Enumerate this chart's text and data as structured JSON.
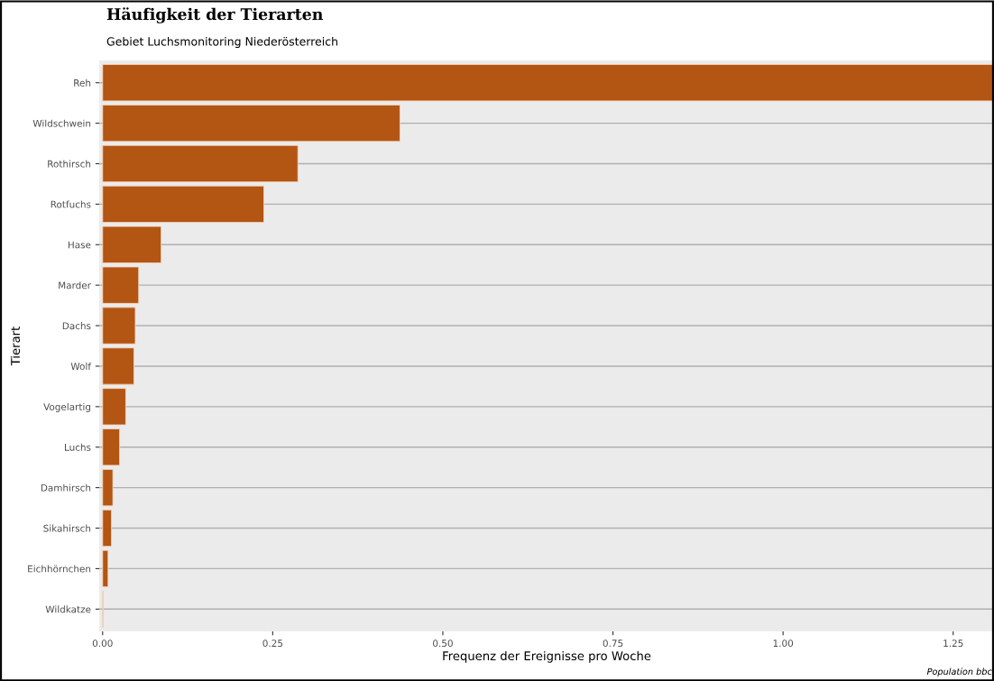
{
  "chart_data": {
    "type": "bar",
    "orientation": "horizontal",
    "title": "Häufigkeit der Tierarten",
    "subtitle": "Gebiet Luchsmonitoring Niederösterreich",
    "xlabel": "Frequenz der Ereignisse pro Woche",
    "ylabel": "Tierart",
    "categories": [
      "Reh",
      "Wildschwein",
      "Rothirsch",
      "Rotfuchs",
      "Hase",
      "Marder",
      "Dachs",
      "Wolf",
      "Vogelartig",
      "Luchs",
      "Damhirsch",
      "Sikahirsch",
      "Eichhörnchen",
      "Wildkatze"
    ],
    "values": [
      1.31,
      0.437,
      0.287,
      0.237,
      0.086,
      0.053,
      0.048,
      0.046,
      0.034,
      0.025,
      0.015,
      0.013,
      0.008,
      0.001
    ],
    "color": "#b35513",
    "xlim": [
      -0.005,
      1.31
    ],
    "xticks": [
      {
        "value": 0,
        "label": "0.00"
      },
      {
        "value": 0.25,
        "label": "0.25"
      },
      {
        "value": 0.5,
        "label": "0.50"
      },
      {
        "value": 0.75,
        "label": "0.75"
      },
      {
        "value": 1,
        "label": "1.00"
      },
      {
        "value": 1.25,
        "label": "1.25"
      }
    ],
    "grid": "y",
    "annotations": [
      "Population bbc"
    ]
  }
}
